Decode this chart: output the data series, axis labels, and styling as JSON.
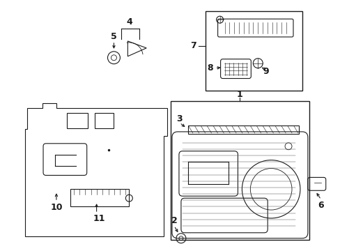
{
  "bg_color": "#ffffff",
  "line_color": "#1a1a1a",
  "fig_width": 4.89,
  "fig_height": 3.6,
  "dpi": 100,
  "font_size": 9,
  "font_size_sm": 8
}
